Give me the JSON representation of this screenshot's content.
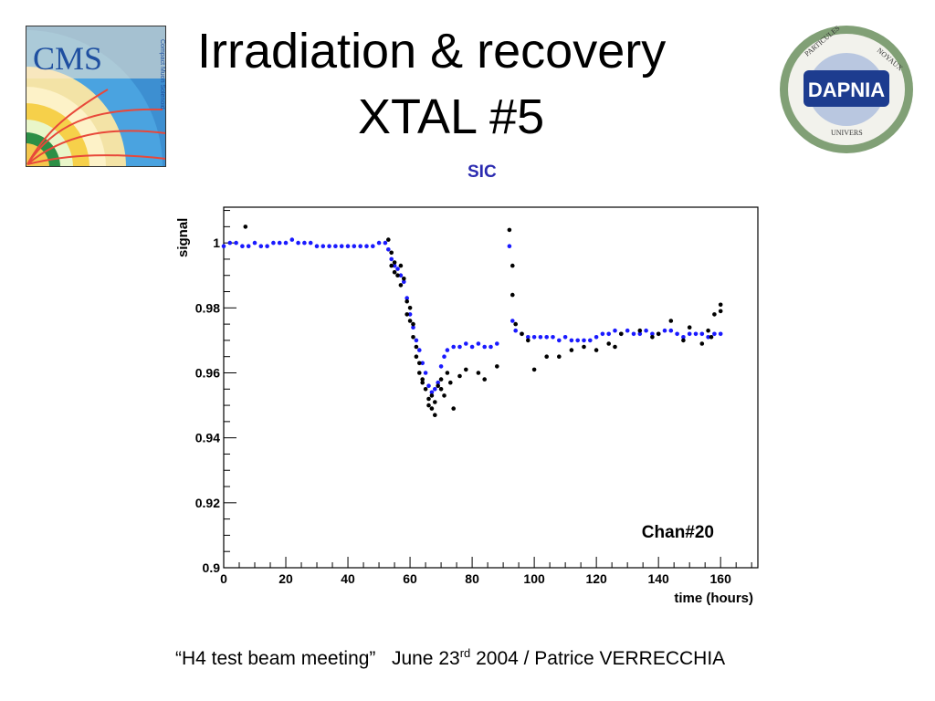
{
  "title_line1": "Irradiation & recovery",
  "title_line2": "XTAL #5",
  "subtitle": "SIC",
  "footer": {
    "meeting": "“H4 test beam meeting”",
    "date_pre": "June 23",
    "date_sup": "rd",
    "date_post": " 2004 / Patrice VERRECCHIA"
  },
  "logos": {
    "cms_text": "CMS",
    "cms_sub": "Compact Muon Solenoid",
    "dapnia_text": "DAPNIA",
    "dapnia_ring_top": "PARTICULES",
    "dapnia_ring_right": "NOYAUX",
    "dapnia_ring_bottom": "UNIVERS"
  },
  "colors": {
    "series_blue": "#1a1aff",
    "series_black": "#000000",
    "subtitle": "#2b2bb0"
  },
  "chart_data": {
    "type": "scatter",
    "xlabel": "time  (hours)",
    "ylabel": "signal",
    "xlim": [
      0,
      172
    ],
    "ylim": [
      0.9,
      1.011
    ],
    "xticks": [
      0,
      20,
      40,
      60,
      80,
      100,
      120,
      140,
      160
    ],
    "yticks": [
      0.9,
      0.92,
      0.94,
      0.96,
      0.98,
      1
    ],
    "ytick_labels": [
      "0.9",
      "0.92",
      "0.94",
      "0.96",
      "0.98",
      "1"
    ],
    "annotation": "Chan#20",
    "grid": false,
    "series": [
      {
        "color": "blue",
        "x": [
          0,
          2,
          4,
          6,
          8,
          10,
          12,
          14,
          16,
          18,
          20,
          22,
          24,
          26,
          28,
          30,
          32,
          34,
          36,
          38,
          40,
          42,
          44,
          46,
          48,
          50,
          52,
          53,
          54,
          55,
          56,
          57,
          58,
          59,
          60,
          61,
          62,
          63,
          64,
          65,
          66,
          67,
          68,
          69,
          70,
          71,
          72,
          74,
          76,
          78,
          80,
          82,
          84,
          86,
          88,
          92,
          93,
          94,
          96,
          98,
          100,
          102,
          104,
          106,
          108,
          110,
          112,
          114,
          116,
          118,
          120,
          122,
          124,
          126,
          128,
          130,
          132,
          134,
          136,
          138,
          140,
          142,
          144,
          146,
          148,
          150,
          152,
          154,
          156,
          158,
          160
        ],
        "y": [
          0.999,
          1.0,
          1.0,
          0.999,
          0.999,
          1.0,
          0.999,
          0.999,
          1.0,
          1.0,
          1.0,
          1.001,
          1.0,
          1.0,
          1.0,
          0.999,
          0.999,
          0.999,
          0.999,
          0.999,
          0.999,
          0.999,
          0.999,
          0.999,
          0.999,
          1.0,
          1.0,
          0.998,
          0.995,
          0.993,
          0.992,
          0.99,
          0.988,
          0.983,
          0.978,
          0.974,
          0.97,
          0.967,
          0.963,
          0.96,
          0.956,
          0.954,
          0.955,
          0.957,
          0.962,
          0.965,
          0.967,
          0.968,
          0.968,
          0.969,
          0.968,
          0.969,
          0.968,
          0.968,
          0.969,
          0.999,
          0.976,
          0.973,
          0.972,
          0.971,
          0.971,
          0.971,
          0.971,
          0.971,
          0.97,
          0.971,
          0.97,
          0.97,
          0.97,
          0.97,
          0.971,
          0.972,
          0.972,
          0.973,
          0.972,
          0.973,
          0.972,
          0.972,
          0.973,
          0.972,
          0.972,
          0.973,
          0.973,
          0.972,
          0.971,
          0.972,
          0.972,
          0.972,
          0.971,
          0.972,
          0.972
        ]
      },
      {
        "color": "black",
        "x": [
          7,
          53,
          54,
          54,
          55,
          55,
          56,
          57,
          57,
          58,
          59,
          59,
          60,
          60,
          61,
          61,
          62,
          62,
          63,
          63,
          64,
          64,
          65,
          66,
          66,
          67,
          67,
          68,
          68,
          69,
          70,
          70,
          71,
          72,
          73,
          74,
          76,
          78,
          82,
          84,
          88,
          92,
          93,
          93,
          94,
          96,
          98,
          100,
          104,
          108,
          112,
          116,
          120,
          124,
          126,
          128,
          134,
          138,
          140,
          144,
          148,
          150,
          154,
          156,
          157,
          158,
          160,
          160
        ],
        "y": [
          1.005,
          1.001,
          0.997,
          0.993,
          0.994,
          0.991,
          0.99,
          0.993,
          0.987,
          0.989,
          0.982,
          0.978,
          0.98,
          0.976,
          0.975,
          0.971,
          0.968,
          0.965,
          0.963,
          0.96,
          0.958,
          0.957,
          0.955,
          0.952,
          0.95,
          0.953,
          0.949,
          0.951,
          0.947,
          0.956,
          0.958,
          0.955,
          0.953,
          0.96,
          0.957,
          0.949,
          0.959,
          0.961,
          0.96,
          0.958,
          0.962,
          1.004,
          0.993,
          0.984,
          0.975,
          0.972,
          0.97,
          0.961,
          0.965,
          0.965,
          0.967,
          0.968,
          0.967,
          0.969,
          0.968,
          0.972,
          0.973,
          0.971,
          0.972,
          0.976,
          0.97,
          0.974,
          0.969,
          0.973,
          0.971,
          0.978,
          0.981,
          0.979
        ]
      }
    ]
  }
}
